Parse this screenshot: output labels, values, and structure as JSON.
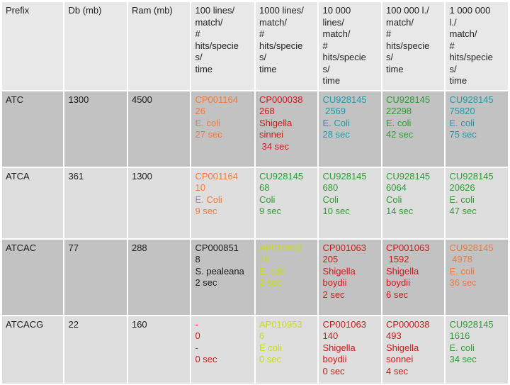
{
  "table": {
    "headers": [
      [
        "Prefix"
      ],
      [
        "Db (mb)"
      ],
      [
        "Ram (mb)"
      ],
      [
        "100 lines/",
        "match/",
        "#",
        "hits/specie",
        "s/",
        "time"
      ],
      [
        "1000 lines/",
        "match/",
        "#",
        "hits/specie",
        "s/",
        "time"
      ],
      [
        "10 000",
        "lines/",
        "match/",
        "#",
        "hits/specie",
        "s/",
        "time"
      ],
      [
        "100 000 l./",
        "match/",
        "#",
        "hits/specie",
        "s/",
        "time"
      ],
      [
        "1 000 000",
        "l./",
        "match/",
        "#",
        "hits/specie",
        "s/",
        "time"
      ]
    ],
    "rows": [
      {
        "prefix": "ATC",
        "db": "1300",
        "ram": "4500",
        "cells": [
          {
            "color": "#f2783a",
            "lines": [
              "CP001164",
              "26",
              "E. coli",
              "27 sec"
            ]
          },
          {
            "color": "#cc1a1a",
            "lines": [
              "CP000038",
              "268",
              "Shigella",
              "sinnei",
              " 34 sec"
            ]
          },
          {
            "color": "#1f9aa8",
            "lines": [
              "CU928145",
              " 2569",
              "E. Coli",
              "28 sec"
            ]
          },
          {
            "color": "#2e9b33",
            "lines": [
              "CU928145",
              "22298",
              "E. coli",
              "42 sec"
            ]
          },
          {
            "color": "#1f9aa8",
            "lines": [
              "CU928145",
              "75820",
              "E. coli",
              "75 sec"
            ]
          }
        ]
      },
      {
        "prefix": "ATCA",
        "db": "361",
        "ram": "1300",
        "cells": [
          {
            "color": "#f2783a",
            "lines": [
              "CP001164",
              "10",
              "E. Coli",
              "9 sec"
            ]
          },
          {
            "color": "#2e9b33",
            "lines": [
              "CU928145",
              "68",
              "Coli",
              "9 sec"
            ]
          },
          {
            "color": "#2e9b33",
            "lines": [
              "CU928145",
              "680",
              "Coli",
              "10 sec"
            ]
          },
          {
            "color": "#2e9b33",
            "lines": [
              "CU928145",
              "6064",
              "Coli",
              "14 sec"
            ]
          },
          {
            "color": "#2e9b33",
            "lines": [
              "CU928145",
              "20626",
              "E. coli",
              "47 sec"
            ]
          }
        ]
      },
      {
        "prefix": "ATCAC",
        "db": "77",
        "ram": "288",
        "cells": [
          {
            "color": "#1c1c1c",
            "lines": [
              "CP000851",
              "8",
              "S. pealeana",
              "2 sec"
            ]
          },
          {
            "color": "#c8dc12",
            "lines": [
              "AP010953",
              "16",
              "E. coli",
              "2 sec"
            ]
          },
          {
            "color": "#cc1a1a",
            "lines": [
              "CP001063",
              "205",
              "Shigella",
              "boydii",
              "2 sec"
            ]
          },
          {
            "color": "#cc1a1a",
            "lines": [
              "CP001063",
              " 1592",
              "Shigella",
              "boydii",
              "6 sec"
            ]
          },
          {
            "color": "#f2783a",
            "lines": [
              "CU928145",
              " 4978",
              "E. coli",
              "36 sec"
            ]
          }
        ]
      },
      {
        "prefix": "ATCACG",
        "db": "22",
        "ram": "160",
        "cells": [
          {
            "color": "#cc1a1a",
            "lines": [
              "-",
              "0",
              "-",
              "0 sec"
            ]
          },
          {
            "color": "#c8dc12",
            "lines": [
              "AP010953",
              "6",
              "E coli",
              "0 sec"
            ]
          },
          {
            "color": "#cc1a1a",
            "lines": [
              "CP001063",
              "140",
              "Shigella",
              "boydii",
              "0 sec"
            ]
          },
          {
            "color": "#cc1a1a",
            "lines": [
              "CP000038",
              "493",
              "Shigella",
              "sonnei",
              "4 sec"
            ]
          },
          {
            "color": "#2e9b33",
            "lines": [
              "CU928145",
              "1616",
              "E. coli",
              "34 sec"
            ]
          }
        ]
      }
    ]
  }
}
